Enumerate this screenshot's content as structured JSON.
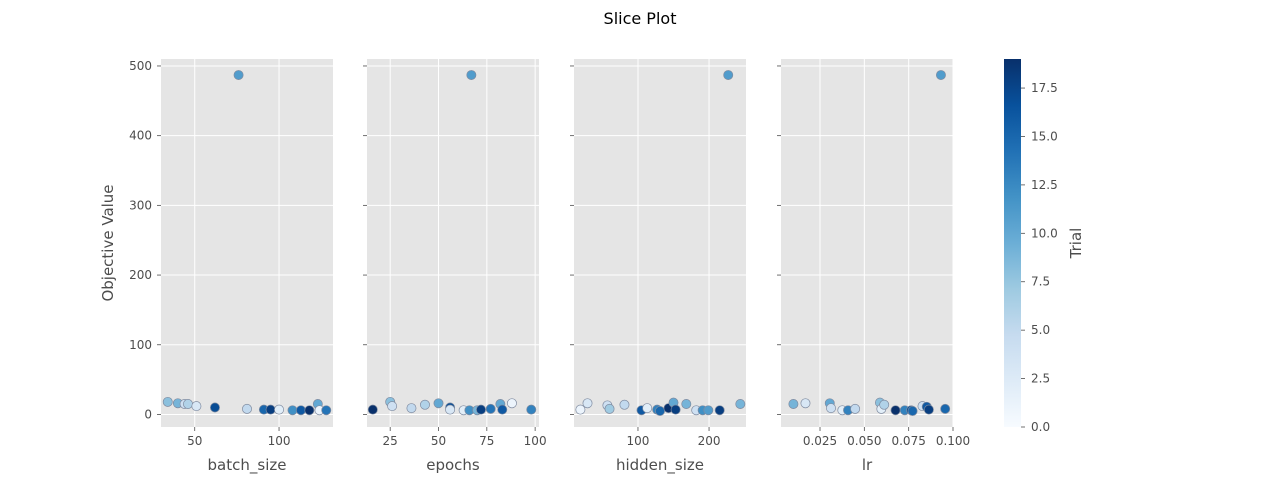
{
  "figure": {
    "title": "Slice Plot"
  },
  "chart_data": {
    "type": "scatter",
    "title": "Slice Plot",
    "ylabel": "Objective Value",
    "ylim": [
      -18,
      510
    ],
    "yticks": [
      0,
      100,
      200,
      300,
      400,
      500
    ],
    "grid": true,
    "colorscale": "Blues",
    "colorbar": {
      "label": "Trial",
      "range": [
        0,
        19
      ],
      "ticks": [
        "0.0",
        "2.5",
        "5.0",
        "7.5",
        "10.0",
        "12.5",
        "15.0",
        "17.5"
      ],
      "tick_values": [
        0,
        2.5,
        5,
        7.5,
        10,
        12.5,
        15,
        17.5
      ]
    },
    "panels": [
      {
        "xlabel": "batch_size",
        "xlim": [
          30,
          132
        ],
        "xticks": [
          50,
          100
        ],
        "xtick_labels": [
          "50",
          "100"
        ],
        "points": [
          {
            "x": 34,
            "y": 18,
            "trial": 8
          },
          {
            "x": 40,
            "y": 16,
            "trial": 9
          },
          {
            "x": 44,
            "y": 15,
            "trial": 4
          },
          {
            "x": 46,
            "y": 15,
            "trial": 6
          },
          {
            "x": 51,
            "y": 12,
            "trial": 3
          },
          {
            "x": 62,
            "y": 10,
            "trial": 17
          },
          {
            "x": 76,
            "y": 487,
            "trial": 11
          },
          {
            "x": 81,
            "y": 8,
            "trial": 5
          },
          {
            "x": 91,
            "y": 7,
            "trial": 15
          },
          {
            "x": 95,
            "y": 7,
            "trial": 18
          },
          {
            "x": 100,
            "y": 7,
            "trial": 2
          },
          {
            "x": 108,
            "y": 6,
            "trial": 12
          },
          {
            "x": 113,
            "y": 6,
            "trial": 16
          },
          {
            "x": 118,
            "y": 6,
            "trial": 19
          },
          {
            "x": 123,
            "y": 15,
            "trial": 10
          },
          {
            "x": 124,
            "y": 6,
            "trial": 1
          },
          {
            "x": 128,
            "y": 6,
            "trial": 14
          }
        ]
      },
      {
        "xlabel": "epochs",
        "xlim": [
          13,
          102
        ],
        "xticks": [
          25,
          50,
          75,
          100
        ],
        "xtick_labels": [
          "25",
          "50",
          "75",
          "100"
        ],
        "points": [
          {
            "x": 16,
            "y": 7,
            "trial": 19
          },
          {
            "x": 25,
            "y": 18,
            "trial": 8
          },
          {
            "x": 26,
            "y": 12,
            "trial": 4
          },
          {
            "x": 36,
            "y": 9,
            "trial": 5
          },
          {
            "x": 43,
            "y": 14,
            "trial": 6
          },
          {
            "x": 50,
            "y": 16,
            "trial": 10
          },
          {
            "x": 56,
            "y": 10,
            "trial": 17
          },
          {
            "x": 56,
            "y": 7,
            "trial": 3
          },
          {
            "x": 63,
            "y": 6,
            "trial": 2
          },
          {
            "x": 66,
            "y": 6,
            "trial": 12
          },
          {
            "x": 67,
            "y": 487,
            "trial": 11
          },
          {
            "x": 70,
            "y": 6,
            "trial": 9
          },
          {
            "x": 72,
            "y": 7,
            "trial": 18
          },
          {
            "x": 77,
            "y": 8,
            "trial": 14
          },
          {
            "x": 82,
            "y": 15,
            "trial": 10
          },
          {
            "x": 83,
            "y": 7,
            "trial": 16
          },
          {
            "x": 88,
            "y": 16,
            "trial": 1
          },
          {
            "x": 98,
            "y": 7,
            "trial": 13
          }
        ]
      },
      {
        "xlabel": "hidden_size",
        "xlim": [
          10,
          252
        ],
        "xticks": [
          100,
          200
        ],
        "xtick_labels": [
          "100",
          "200"
        ],
        "points": [
          {
            "x": 19,
            "y": 7,
            "trial": 1
          },
          {
            "x": 29,
            "y": 16,
            "trial": 3
          },
          {
            "x": 57,
            "y": 13,
            "trial": 4
          },
          {
            "x": 60,
            "y": 8,
            "trial": 7
          },
          {
            "x": 81,
            "y": 14,
            "trial": 5
          },
          {
            "x": 105,
            "y": 6,
            "trial": 16
          },
          {
            "x": 113,
            "y": 9,
            "trial": 2
          },
          {
            "x": 127,
            "y": 7,
            "trial": 13
          },
          {
            "x": 131,
            "y": 5,
            "trial": 15
          },
          {
            "x": 143,
            "y": 9,
            "trial": 19
          },
          {
            "x": 150,
            "y": 17,
            "trial": 10
          },
          {
            "x": 153,
            "y": 7,
            "trial": 18
          },
          {
            "x": 168,
            "y": 15,
            "trial": 9
          },
          {
            "x": 182,
            "y": 6,
            "trial": 4
          },
          {
            "x": 191,
            "y": 6,
            "trial": 12
          },
          {
            "x": 199,
            "y": 6,
            "trial": 11
          },
          {
            "x": 215,
            "y": 6,
            "trial": 18
          },
          {
            "x": 227,
            "y": 487,
            "trial": 11
          },
          {
            "x": 244,
            "y": 15,
            "trial": 9
          }
        ]
      },
      {
        "xlabel": "lr",
        "xlim": [
          0.003,
          0.1
        ],
        "xticks": [
          0.025,
          0.05,
          0.075,
          0.1
        ],
        "xtick_labels": [
          "0.025",
          "0.050",
          "0.075",
          "0.100"
        ],
        "points": [
          {
            "x": 0.01,
            "y": 15,
            "trial": 9
          },
          {
            "x": 0.0168,
            "y": 16,
            "trial": 3
          },
          {
            "x": 0.0305,
            "y": 16,
            "trial": 10
          },
          {
            "x": 0.0312,
            "y": 9,
            "trial": 4
          },
          {
            "x": 0.0376,
            "y": 6,
            "trial": 2
          },
          {
            "x": 0.0408,
            "y": 6,
            "trial": 13
          },
          {
            "x": 0.0448,
            "y": 8,
            "trial": 5
          },
          {
            "x": 0.0588,
            "y": 17,
            "trial": 8
          },
          {
            "x": 0.0596,
            "y": 8,
            "trial": 2
          },
          {
            "x": 0.0612,
            "y": 14,
            "trial": 6
          },
          {
            "x": 0.0676,
            "y": 6,
            "trial": 19
          },
          {
            "x": 0.0728,
            "y": 6,
            "trial": 13
          },
          {
            "x": 0.0764,
            "y": 6,
            "trial": 17
          },
          {
            "x": 0.0772,
            "y": 5,
            "trial": 15
          },
          {
            "x": 0.0828,
            "y": 12,
            "trial": 4
          },
          {
            "x": 0.0852,
            "y": 11,
            "trial": 16
          },
          {
            "x": 0.0864,
            "y": 7,
            "trial": 18
          },
          {
            "x": 0.0932,
            "y": 487,
            "trial": 11
          },
          {
            "x": 0.0956,
            "y": 8,
            "trial": 15
          }
        ]
      }
    ]
  }
}
